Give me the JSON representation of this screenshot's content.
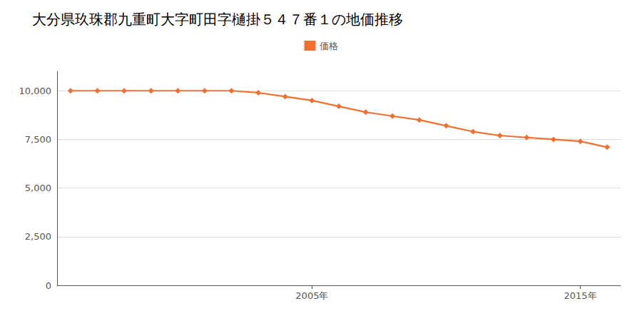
{
  "chart_data": {
    "type": "line",
    "title": "大分県玖珠郡九重町大字町田字樋掛５４７番１の地価推移",
    "x": [
      1996,
      1997,
      1998,
      1999,
      2000,
      2001,
      2002,
      2003,
      2004,
      2005,
      2006,
      2007,
      2008,
      2009,
      2010,
      2011,
      2012,
      2013,
      2014,
      2015,
      2016
    ],
    "series": [
      {
        "name": "価格",
        "color": "#f07030",
        "marker": "diamond",
        "values": [
          10000,
          10000,
          10000,
          10000,
          10000,
          10000,
          10000,
          9900,
          9700,
          9500,
          9200,
          8900,
          8700,
          8500,
          8200,
          7900,
          7700,
          7600,
          7500,
          7400,
          7100
        ]
      }
    ],
    "xlim": [
      1995.5,
      2016.5
    ],
    "xticks": [
      {
        "value": 2005,
        "label": "2005年"
      },
      {
        "value": 2015,
        "label": "2015年"
      }
    ],
    "ylim": [
      0,
      11000
    ],
    "yticks": [
      0,
      {
        "value": 2500,
        "label": "2,500"
      },
      {
        "value": 5000,
        "label": "5,000"
      },
      {
        "value": 7500,
        "label": "7,500"
      },
      {
        "value": 10000,
        "label": "10,000"
      }
    ],
    "grid": true,
    "legend": "top"
  }
}
